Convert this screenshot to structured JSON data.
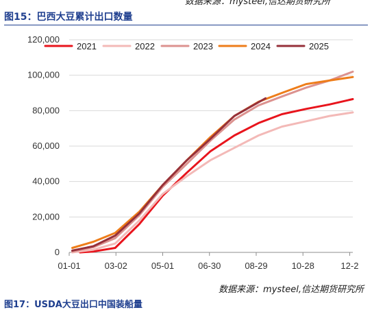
{
  "header": {
    "top_clip": "数据来源：mysteel,信达期货研究所",
    "figure_title": "图15：巴西大豆累计出口数量",
    "source": "数据来源：mysteel,信达期货研究所",
    "next_figure": "图17：USDA大豆出口中国装船量"
  },
  "chart_data": {
    "type": "line",
    "title": "",
    "xlabel": "",
    "ylabel": "",
    "ylim": [
      0,
      120000
    ],
    "yticks": [
      0,
      20000,
      40000,
      60000,
      80000,
      100000,
      120000
    ],
    "ytick_labels": [
      "0",
      "20,000",
      "40,000",
      "60,000",
      "80,000",
      "100,000",
      "120,000"
    ],
    "xlim": [
      "01-01",
      "12-31"
    ],
    "xticks": [
      "01-01",
      "03-02",
      "05-01",
      "06-30",
      "08-29",
      "10-28",
      "12-27"
    ],
    "xtick_labels": [
      "01-01",
      "03-02",
      "05-01",
      "06-30",
      "08-29",
      "10-28",
      "12-2"
    ],
    "grid": "horizontal",
    "legend_position": "top",
    "series": [
      {
        "name": "2021",
        "color": "#e8141c",
        "points": [
          [
            "01-15",
            0
          ],
          [
            "02-01",
            500
          ],
          [
            "03-01",
            2500
          ],
          [
            "04-01",
            16000
          ],
          [
            "05-01",
            32000
          ],
          [
            "06-01",
            45000
          ],
          [
            "07-01",
            57000
          ],
          [
            "08-01",
            66000
          ],
          [
            "09-01",
            73000
          ],
          [
            "10-01",
            78000
          ],
          [
            "11-01",
            81000
          ],
          [
            "12-01",
            83500
          ],
          [
            "12-31",
            86500
          ]
        ]
      },
      {
        "name": "2022",
        "color": "#f3b9b7",
        "points": [
          [
            "01-05",
            0
          ],
          [
            "02-01",
            1500
          ],
          [
            "03-01",
            5000
          ],
          [
            "04-01",
            18000
          ],
          [
            "05-01",
            33000
          ],
          [
            "06-01",
            43000
          ],
          [
            "07-01",
            52000
          ],
          [
            "08-01",
            59000
          ],
          [
            "09-01",
            66000
          ],
          [
            "10-01",
            71000
          ],
          [
            "11-01",
            74000
          ],
          [
            "12-01",
            77000
          ],
          [
            "12-31",
            79000
          ]
        ]
      },
      {
        "name": "2023",
        "color": "#dc928f",
        "points": [
          [
            "01-05",
            500
          ],
          [
            "02-01",
            3000
          ],
          [
            "03-01",
            8000
          ],
          [
            "04-01",
            21000
          ],
          [
            "05-01",
            37000
          ],
          [
            "06-01",
            50000
          ],
          [
            "07-01",
            63000
          ],
          [
            "08-01",
            75000
          ],
          [
            "09-01",
            83000
          ],
          [
            "10-01",
            88000
          ],
          [
            "11-01",
            93000
          ],
          [
            "12-01",
            97000
          ],
          [
            "12-31",
            102000
          ]
        ]
      },
      {
        "name": "2024",
        "color": "#ee7d1a",
        "points": [
          [
            "01-05",
            2500
          ],
          [
            "02-01",
            6000
          ],
          [
            "03-01",
            11000
          ],
          [
            "04-01",
            23000
          ],
          [
            "05-01",
            38000
          ],
          [
            "06-01",
            52000
          ],
          [
            "07-01",
            65000
          ],
          [
            "08-01",
            77000
          ],
          [
            "09-01",
            85000
          ],
          [
            "10-01",
            90000
          ],
          [
            "11-01",
            95000
          ],
          [
            "12-01",
            97000
          ],
          [
            "12-31",
            99000
          ]
        ]
      },
      {
        "name": "2025",
        "color": "#96303a",
        "points": [
          [
            "01-05",
            1000
          ],
          [
            "02-01",
            3500
          ],
          [
            "03-01",
            9500
          ],
          [
            "04-01",
            22000
          ],
          [
            "05-01",
            38000
          ],
          [
            "06-01",
            52000
          ],
          [
            "07-01",
            64000
          ],
          [
            "08-01",
            77000
          ],
          [
            "09-10",
            87000
          ]
        ]
      }
    ]
  }
}
